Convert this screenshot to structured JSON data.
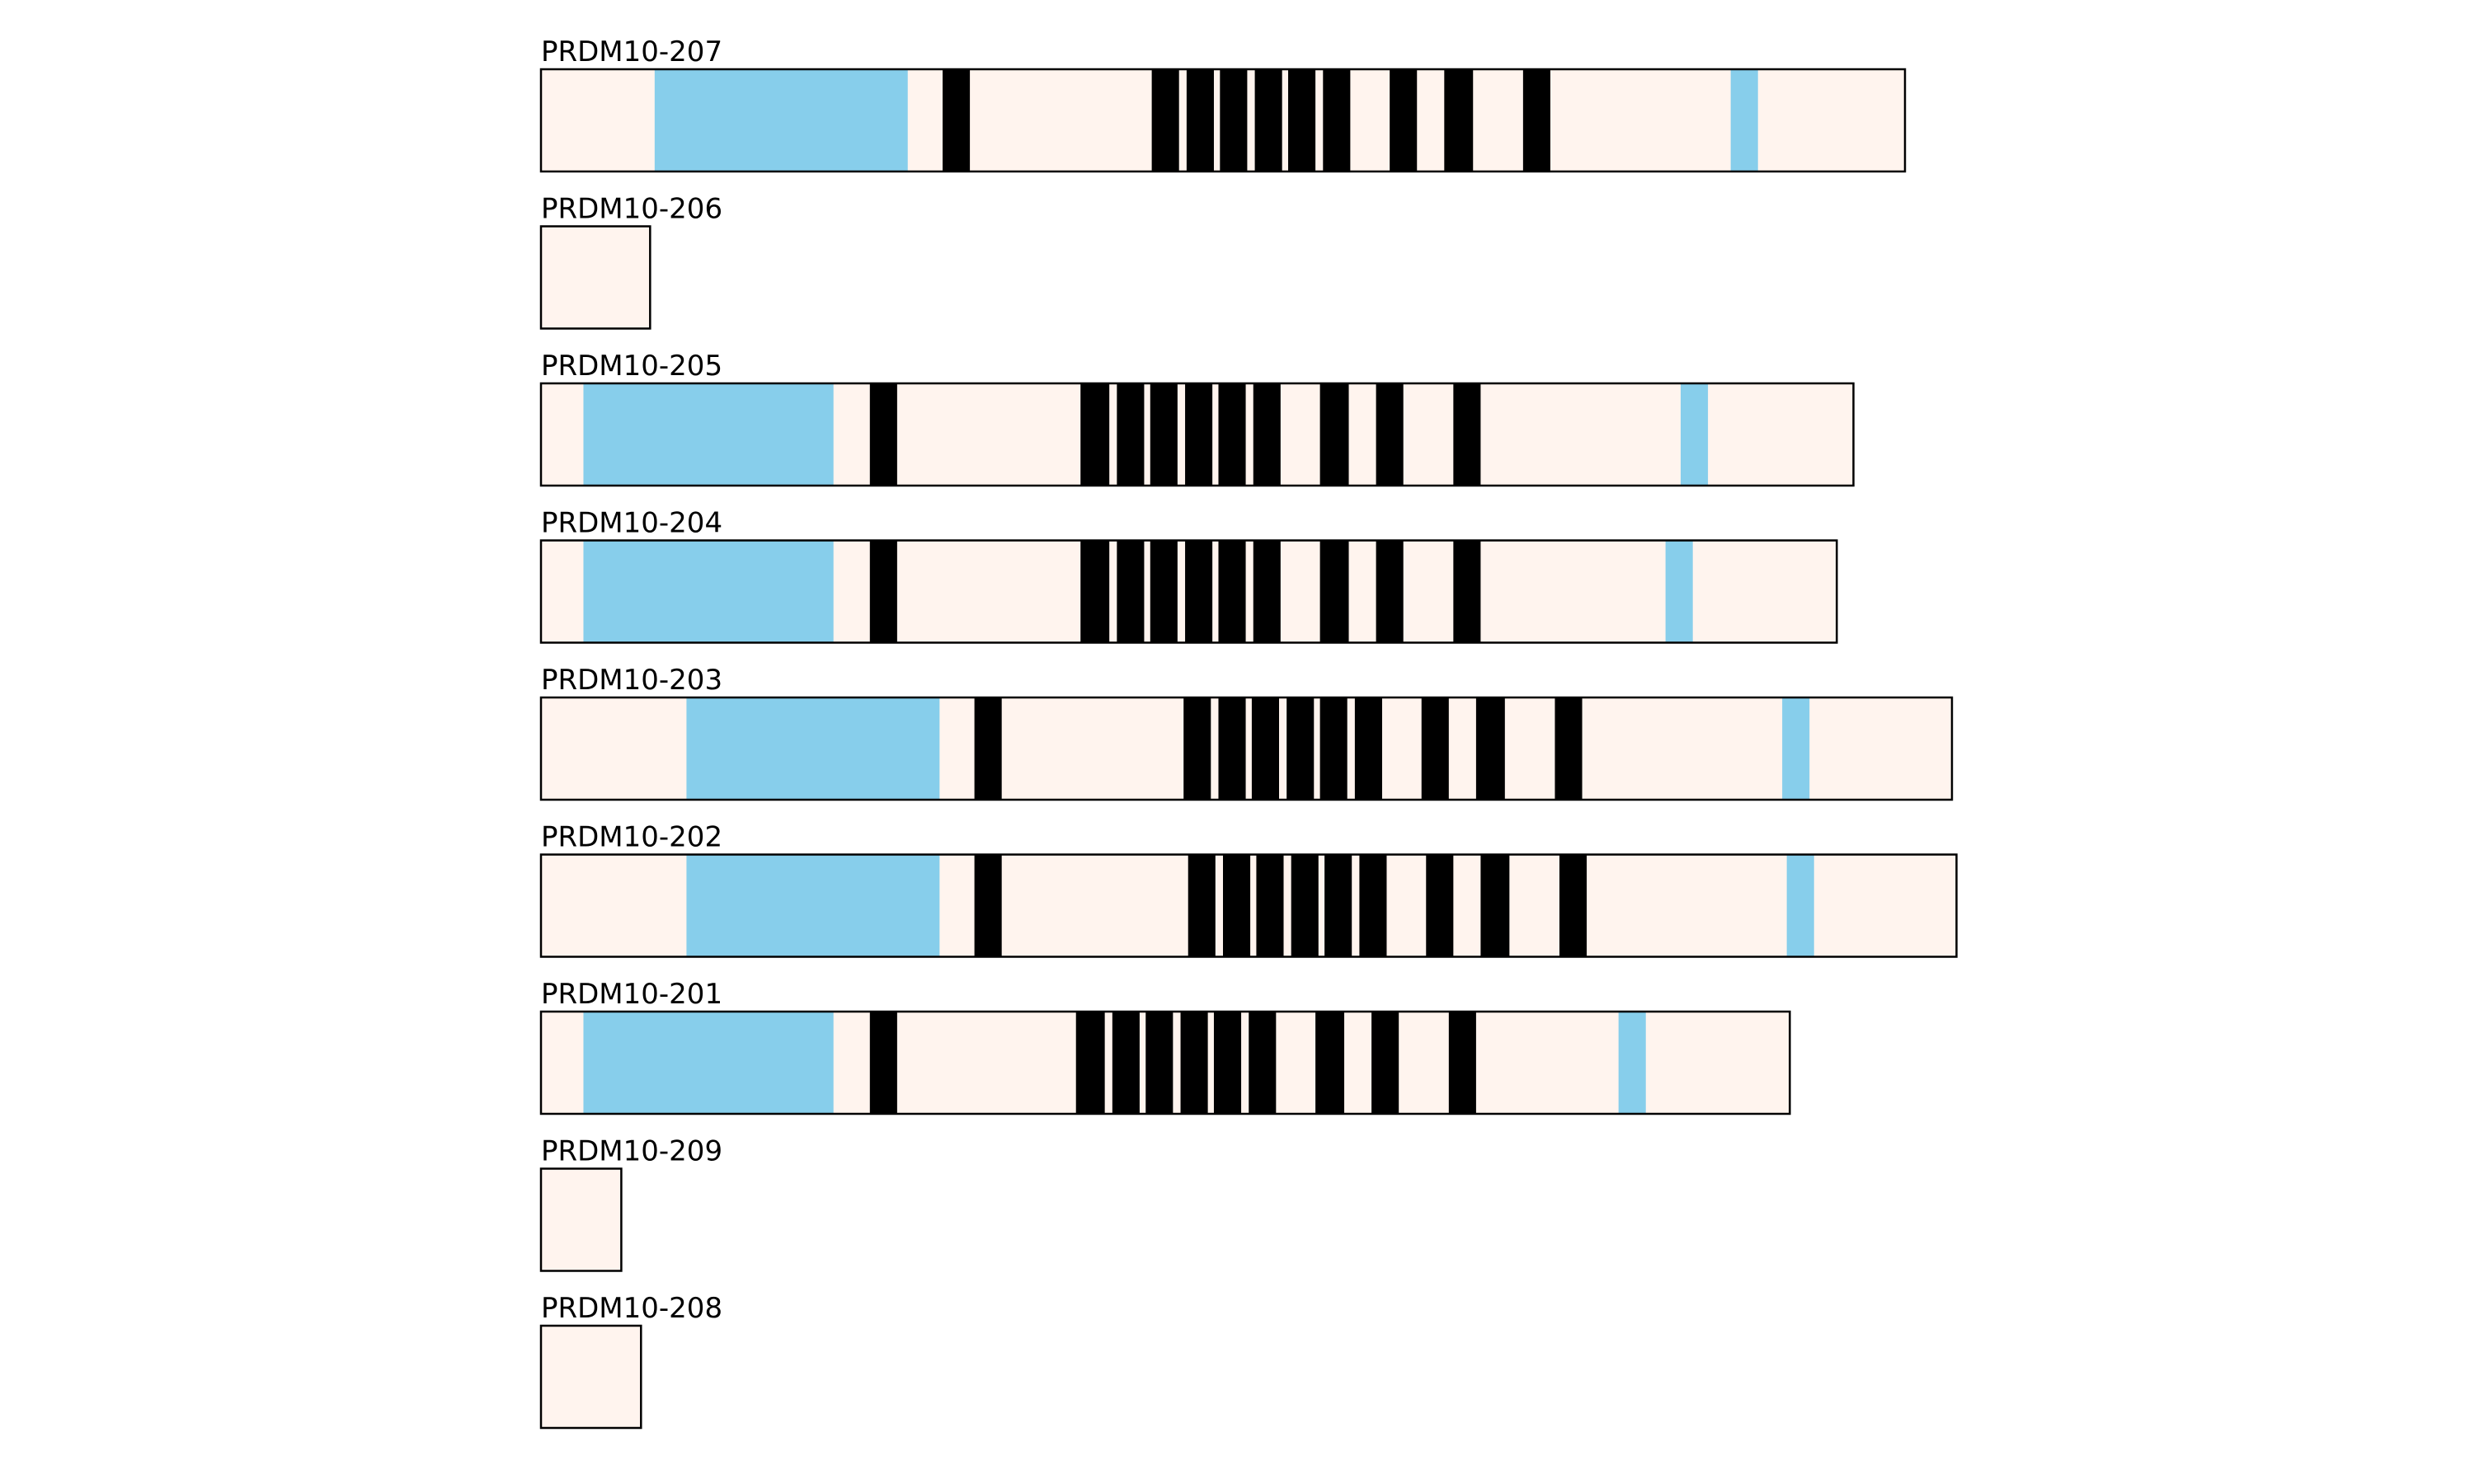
{
  "colors": {
    "background": "#fff4ee",
    "domain_blue": "#87ceeb",
    "domain_black": "#000000",
    "outline": "#000000"
  },
  "x_range": [
    0,
    900
  ],
  "tracks": [
    {
      "name": "PRDM10-207",
      "length": 900,
      "features": [
        {
          "start": 75,
          "end": 242,
          "color": "blue"
        },
        {
          "start": 265,
          "end": 283,
          "color": "black"
        },
        {
          "start": 403,
          "end": 421,
          "color": "black"
        },
        {
          "start": 426,
          "end": 444,
          "color": "black"
        },
        {
          "start": 448,
          "end": 466,
          "color": "black"
        },
        {
          "start": 471,
          "end": 489,
          "color": "black"
        },
        {
          "start": 493,
          "end": 511,
          "color": "black"
        },
        {
          "start": 516,
          "end": 534,
          "color": "black"
        },
        {
          "start": 560,
          "end": 578,
          "color": "black"
        },
        {
          "start": 596,
          "end": 615,
          "color": "black"
        },
        {
          "start": 648,
          "end": 666,
          "color": "black"
        },
        {
          "start": 785,
          "end": 803,
          "color": "blue"
        }
      ]
    },
    {
      "name": "PRDM10-206",
      "length": 72,
      "features": []
    },
    {
      "name": "PRDM10-205",
      "length": 866,
      "features": [
        {
          "start": 28,
          "end": 193,
          "color": "blue"
        },
        {
          "start": 217,
          "end": 235,
          "color": "black"
        },
        {
          "start": 356,
          "end": 375,
          "color": "black"
        },
        {
          "start": 380,
          "end": 398,
          "color": "black"
        },
        {
          "start": 402,
          "end": 420,
          "color": "black"
        },
        {
          "start": 425,
          "end": 443,
          "color": "black"
        },
        {
          "start": 447,
          "end": 465,
          "color": "black"
        },
        {
          "start": 470,
          "end": 488,
          "color": "black"
        },
        {
          "start": 514,
          "end": 533,
          "color": "black"
        },
        {
          "start": 551,
          "end": 569,
          "color": "black"
        },
        {
          "start": 602,
          "end": 620,
          "color": "black"
        },
        {
          "start": 752,
          "end": 770,
          "color": "blue"
        }
      ]
    },
    {
      "name": "PRDM10-204",
      "length": 855,
      "features": [
        {
          "start": 28,
          "end": 193,
          "color": "blue"
        },
        {
          "start": 217,
          "end": 235,
          "color": "black"
        },
        {
          "start": 356,
          "end": 375,
          "color": "black"
        },
        {
          "start": 380,
          "end": 398,
          "color": "black"
        },
        {
          "start": 402,
          "end": 420,
          "color": "black"
        },
        {
          "start": 425,
          "end": 443,
          "color": "black"
        },
        {
          "start": 447,
          "end": 465,
          "color": "black"
        },
        {
          "start": 470,
          "end": 488,
          "color": "black"
        },
        {
          "start": 514,
          "end": 533,
          "color": "black"
        },
        {
          "start": 551,
          "end": 569,
          "color": "black"
        },
        {
          "start": 602,
          "end": 620,
          "color": "black"
        },
        {
          "start": 742,
          "end": 760,
          "color": "blue"
        }
      ]
    },
    {
      "name": "PRDM10-203",
      "length": 931,
      "features": [
        {
          "start": 96,
          "end": 263,
          "color": "blue"
        },
        {
          "start": 286,
          "end": 304,
          "color": "black"
        },
        {
          "start": 424,
          "end": 442,
          "color": "black"
        },
        {
          "start": 447,
          "end": 465,
          "color": "black"
        },
        {
          "start": 469,
          "end": 487,
          "color": "black"
        },
        {
          "start": 492,
          "end": 510,
          "color": "black"
        },
        {
          "start": 514,
          "end": 532,
          "color": "black"
        },
        {
          "start": 537,
          "end": 555,
          "color": "black"
        },
        {
          "start": 581,
          "end": 599,
          "color": "black"
        },
        {
          "start": 617,
          "end": 636,
          "color": "black"
        },
        {
          "start": 669,
          "end": 687,
          "color": "black"
        },
        {
          "start": 819,
          "end": 837,
          "color": "blue"
        }
      ]
    },
    {
      "name": "PRDM10-202",
      "length": 934,
      "features": [
        {
          "start": 96,
          "end": 263,
          "color": "blue"
        },
        {
          "start": 286,
          "end": 304,
          "color": "black"
        },
        {
          "start": 427,
          "end": 445,
          "color": "black"
        },
        {
          "start": 450,
          "end": 468,
          "color": "black"
        },
        {
          "start": 472,
          "end": 490,
          "color": "black"
        },
        {
          "start": 495,
          "end": 513,
          "color": "black"
        },
        {
          "start": 517,
          "end": 535,
          "color": "black"
        },
        {
          "start": 540,
          "end": 558,
          "color": "black"
        },
        {
          "start": 584,
          "end": 602,
          "color": "black"
        },
        {
          "start": 620,
          "end": 639,
          "color": "black"
        },
        {
          "start": 672,
          "end": 690,
          "color": "black"
        },
        {
          "start": 822,
          "end": 840,
          "color": "blue"
        }
      ]
    },
    {
      "name": "PRDM10-201",
      "length": 824,
      "features": [
        {
          "start": 28,
          "end": 193,
          "color": "blue"
        },
        {
          "start": 217,
          "end": 235,
          "color": "black"
        },
        {
          "start": 353,
          "end": 372,
          "color": "black"
        },
        {
          "start": 377,
          "end": 395,
          "color": "black"
        },
        {
          "start": 399,
          "end": 417,
          "color": "black"
        },
        {
          "start": 422,
          "end": 440,
          "color": "black"
        },
        {
          "start": 444,
          "end": 462,
          "color": "black"
        },
        {
          "start": 467,
          "end": 485,
          "color": "black"
        },
        {
          "start": 511,
          "end": 530,
          "color": "black"
        },
        {
          "start": 548,
          "end": 566,
          "color": "black"
        },
        {
          "start": 599,
          "end": 617,
          "color": "black"
        },
        {
          "start": 711,
          "end": 729,
          "color": "blue"
        }
      ]
    },
    {
      "name": "PRDM10-209",
      "length": 53,
      "features": []
    },
    {
      "name": "PRDM10-208",
      "length": 66,
      "features": []
    }
  ]
}
